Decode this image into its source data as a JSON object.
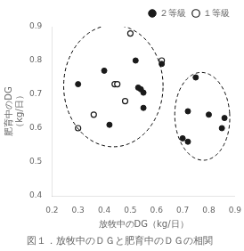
{
  "chart_data": {
    "type": "scatter",
    "title": "図１．放牧中のＤＧと肥育中のＤＧの相関",
    "xlabel": "放牧中のDG（kg/日）",
    "ylabel": [
      "肥育中のDG",
      "（kg/日）"
    ],
    "xlim": [
      0.2,
      0.9
    ],
    "ylim": [
      0.4,
      0.9
    ],
    "xticks": [
      0.2,
      0.3,
      0.4,
      0.5,
      0.6,
      0.7,
      0.8,
      0.9
    ],
    "yticks": [
      0.4,
      0.5,
      0.6,
      0.7,
      0.8,
      0.9
    ],
    "grid": false,
    "legend": "upper right",
    "series": [
      {
        "name": "２等級",
        "color": "#1a1a1a",
        "marker": "circle",
        "x": [
          0.3,
          0.4,
          0.42,
          0.52,
          0.53,
          0.54,
          0.55,
          0.55,
          0.62,
          0.7,
          0.72,
          0.72,
          0.75,
          0.8,
          0.85,
          0.86
        ],
        "values": [
          0.73,
          0.77,
          0.61,
          0.8,
          0.72,
          0.715,
          0.705,
          0.66,
          0.79,
          0.57,
          0.56,
          0.65,
          0.75,
          0.64,
          0.6,
          0.63
        ]
      },
      {
        "name": "１等級",
        "color": "#1a1a1a",
        "marker": "open_circle",
        "x": [
          0.3,
          0.36,
          0.44,
          0.45,
          0.48,
          0.5,
          0.62
        ],
        "values": [
          0.6,
          0.64,
          0.73,
          0.73,
          0.68,
          0.88,
          0.8
        ]
      }
    ],
    "ellipses": [
      {
        "cx": 0.435,
        "cy": 0.725,
        "width": 0.38,
        "height": 0.36,
        "angle": 0,
        "color": "#000000",
        "line_style": "dashed"
      },
      {
        "cx": 0.775,
        "cy": 0.635,
        "width": 0.21,
        "height": 0.26,
        "angle": 5,
        "color": "#000000",
        "line_style": "dashed"
      }
    ]
  }
}
